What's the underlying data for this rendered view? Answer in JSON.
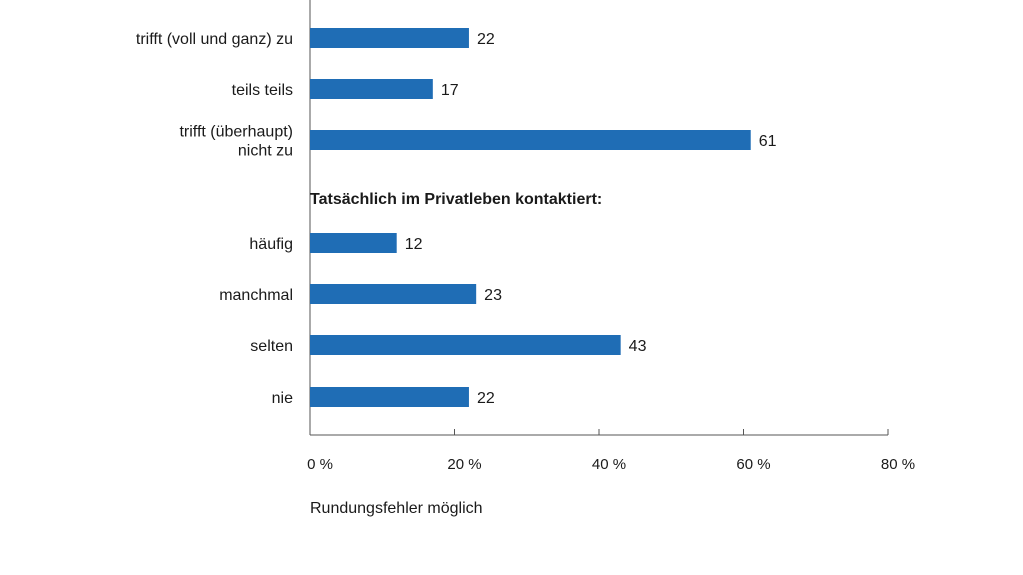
{
  "chart_data": {
    "type": "bar",
    "orientation": "horizontal",
    "bar_color": "#1f6db5",
    "xlim": [
      0,
      80
    ],
    "xticks": [
      "0 %",
      "20 %",
      "40 %",
      "60 %",
      "80 %"
    ],
    "grid": false,
    "groups": [
      {
        "title": "",
        "categories": [
          [
            "trifft (voll und ganz) zu"
          ],
          [
            "teils teils"
          ],
          [
            "trifft (überhaupt)",
            "nicht zu"
          ]
        ],
        "values": [
          22,
          17,
          61
        ]
      },
      {
        "title": "Tatsächlich im Privatleben kontaktiert:",
        "categories": [
          [
            "häufig"
          ],
          [
            "manchmal"
          ],
          [
            "selten"
          ],
          [
            "nie"
          ]
        ],
        "values": [
          12,
          23,
          43,
          22
        ]
      }
    ],
    "footnote": "Rundungsfehler möglich"
  }
}
